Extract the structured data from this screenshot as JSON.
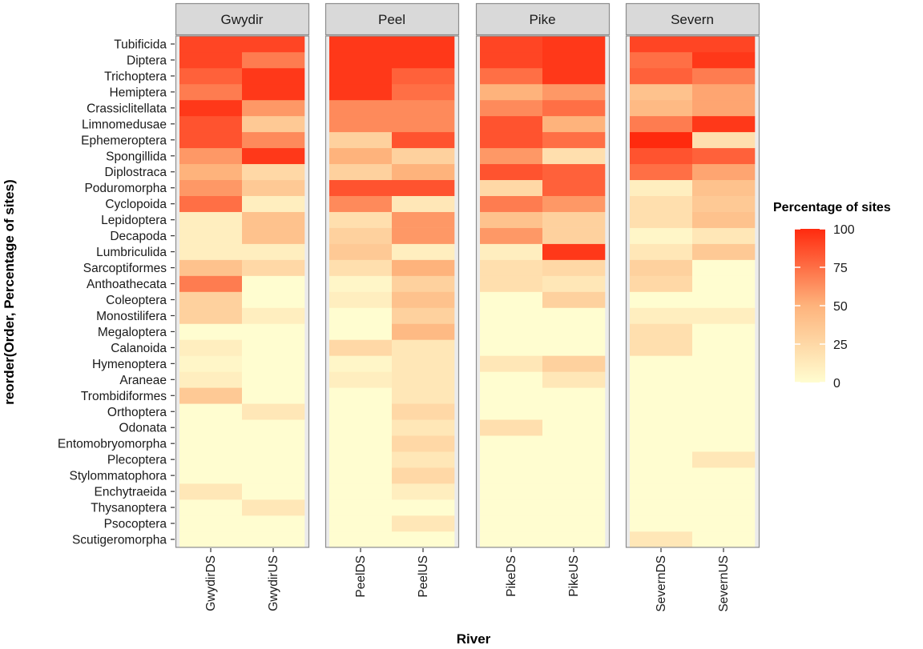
{
  "chart_data": {
    "type": "heatmap",
    "xlabel": "River",
    "ylabel": "reorder(Order, Percentage of sites)",
    "facets": [
      "Gwydir",
      "Peel",
      "Pike",
      "Severn"
    ],
    "columns": [
      [
        "GwydirDS",
        "GwydirUS"
      ],
      [
        "PeelDS",
        "PeelUS"
      ],
      [
        "PikeDS",
        "PikeUS"
      ],
      [
        "SevernDS",
        "SevernUS"
      ]
    ],
    "rows": [
      "Scutigeromorpha",
      "Psocoptera",
      "Thysanoptera",
      "Enchytraeida",
      "Stylommatophora",
      "Plecoptera",
      "Entomobryomorpha",
      "Odonata",
      "Orthoptera",
      "Trombidiformes",
      "Araneae",
      "Hymenoptera",
      "Calanoida",
      "Megaloptera",
      "Monostilifera",
      "Coleoptera",
      "Anthoathecata",
      "Sarcoptiformes",
      "Lumbriculida",
      "Decapoda",
      "Lepidoptera",
      "Cyclopoida",
      "Poduromorpha",
      "Diplostraca",
      "Spongillida",
      "Ephemeroptera",
      "Limnomedusae",
      "Crassiclitellata",
      "Hemiptera",
      "Trichoptera",
      "Diptera",
      "Tubificida"
    ],
    "row_values": [
      [
        0,
        0,
        0,
        0,
        0,
        0,
        15,
        0
      ],
      [
        0,
        0,
        0,
        15,
        0,
        0,
        0,
        0
      ],
      [
        0,
        15,
        0,
        0,
        0,
        0,
        0,
        0
      ],
      [
        15,
        0,
        0,
        10,
        0,
        0,
        0,
        0
      ],
      [
        0,
        0,
        0,
        25,
        0,
        0,
        0,
        0
      ],
      [
        0,
        0,
        0,
        15,
        0,
        0,
        0,
        15
      ],
      [
        0,
        0,
        0,
        25,
        0,
        0,
        0,
        0
      ],
      [
        0,
        0,
        0,
        15,
        20,
        0,
        0,
        0
      ],
      [
        0,
        15,
        0,
        25,
        0,
        0,
        0,
        0
      ],
      [
        35,
        0,
        0,
        15,
        0,
        0,
        0,
        0
      ],
      [
        10,
        0,
        10,
        15,
        0,
        15,
        0,
        0
      ],
      [
        5,
        0,
        5,
        15,
        15,
        30,
        0,
        0
      ],
      [
        10,
        0,
        25,
        15,
        0,
        0,
        20,
        0
      ],
      [
        0,
        0,
        0,
        45,
        0,
        0,
        20,
        0
      ],
      [
        30,
        10,
        0,
        30,
        0,
        0,
        10,
        10
      ],
      [
        30,
        0,
        10,
        40,
        0,
        30,
        0,
        0
      ],
      [
        70,
        0,
        5,
        30,
        20,
        15,
        25,
        0
      ],
      [
        40,
        25,
        20,
        50,
        20,
        25,
        30,
        0
      ],
      [
        10,
        10,
        35,
        10,
        10,
        95,
        15,
        35
      ],
      [
        10,
        40,
        30,
        60,
        60,
        30,
        5,
        15
      ],
      [
        10,
        40,
        20,
        60,
        40,
        30,
        20,
        40
      ],
      [
        75,
        10,
        65,
        15,
        70,
        60,
        20,
        35
      ],
      [
        60,
        35,
        85,
        85,
        25,
        80,
        10,
        40
      ],
      [
        50,
        25,
        30,
        50,
        85,
        80,
        75,
        55
      ],
      [
        60,
        95,
        50,
        30,
        60,
        20,
        85,
        80
      ],
      [
        85,
        65,
        30,
        85,
        85,
        75,
        100,
        20
      ],
      [
        85,
        35,
        65,
        65,
        85,
        50,
        70,
        95
      ],
      [
        95,
        60,
        65,
        65,
        65,
        75,
        45,
        55
      ],
      [
        70,
        95,
        95,
        75,
        50,
        60,
        40,
        55
      ],
      [
        80,
        95,
        95,
        80,
        75,
        95,
        80,
        70
      ],
      [
        90,
        70,
        95,
        95,
        90,
        95,
        75,
        95
      ],
      [
        90,
        90,
        95,
        95,
        90,
        95,
        90,
        90
      ]
    ],
    "legend": {
      "title": "Percentage of sites",
      "ticks": [
        "100",
        "75",
        "50",
        "25",
        "0"
      ],
      "low_color": "#fffdd0",
      "mid_color": "#feb37c",
      "high_color": "#ff2a0e"
    },
    "panel_bg": "#ebebeb",
    "strip_bg": "#d9d9d9"
  }
}
